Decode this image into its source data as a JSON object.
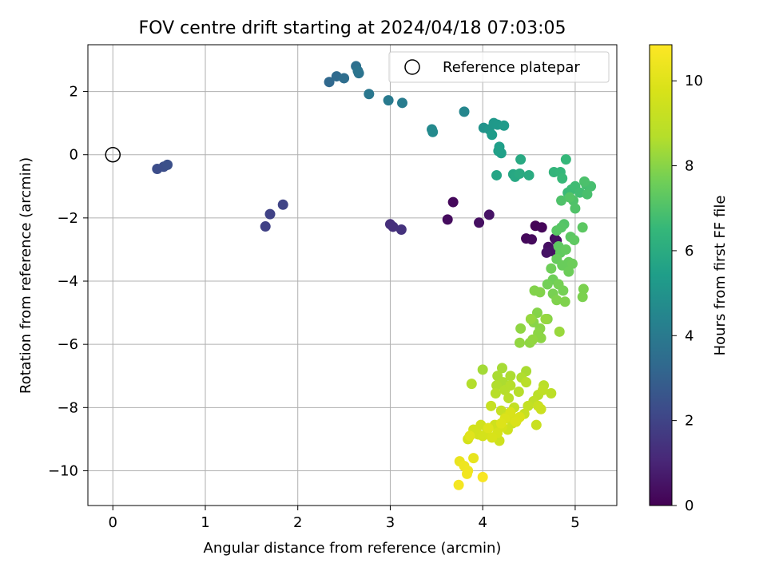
{
  "chart_data": {
    "type": "scatter",
    "title": "FOV centre drift starting at 2024/04/18 07:03:05",
    "xlabel": "Angular distance from reference (arcmin)",
    "ylabel": "Rotation from reference (arcmin)",
    "xlim": [
      -0.27,
      5.45
    ],
    "ylim": [
      -11.1,
      3.48
    ],
    "xticks": [
      0,
      1,
      2,
      3,
      4,
      5
    ],
    "xtick_labels": [
      "0",
      "1",
      "2",
      "3",
      "4",
      "5"
    ],
    "yticks": [
      2,
      0,
      -2,
      -4,
      -6,
      -8,
      -10
    ],
    "ytick_labels": [
      "2",
      "0",
      "−2",
      "−4",
      "−6",
      "−8",
      "−10"
    ],
    "grid": true,
    "legend": {
      "placement": "upper right",
      "entries": [
        {
          "label": "Reference platepar",
          "marker": "open-circle"
        }
      ]
    },
    "reference_point": {
      "x": 0,
      "y": 0
    },
    "colorbar": {
      "label": "Hours from first FF file",
      "colormap": "viridis",
      "range": [
        0,
        10.85
      ],
      "ticks": [
        0,
        2,
        4,
        6,
        8,
        10
      ],
      "tick_labels": [
        "0",
        "2",
        "4",
        "6",
        "8",
        "10"
      ]
    },
    "points": [
      {
        "x": 3.68,
        "y": -1.5,
        "t": 0.2
      },
      {
        "x": 3.62,
        "y": -2.05,
        "t": 0.3
      },
      {
        "x": 3.96,
        "y": -2.15,
        "t": 0.4
      },
      {
        "x": 4.07,
        "y": -1.9,
        "t": 0.5
      },
      {
        "x": 4.57,
        "y": -2.25,
        "t": 0.1
      },
      {
        "x": 4.64,
        "y": -2.3,
        "t": 0.15
      },
      {
        "x": 4.47,
        "y": -2.65,
        "t": 0.2
      },
      {
        "x": 4.53,
        "y": -2.68,
        "t": 0.25
      },
      {
        "x": 4.78,
        "y": -2.65,
        "t": 0.3
      },
      {
        "x": 4.8,
        "y": -2.72,
        "t": 0.35
      },
      {
        "x": 4.71,
        "y": -2.92,
        "t": 0.4
      },
      {
        "x": 4.74,
        "y": -3.05,
        "t": 0.45
      },
      {
        "x": 4.69,
        "y": -3.1,
        "t": 0.5
      },
      {
        "x": 3.0,
        "y": -2.2,
        "t": 1.3
      },
      {
        "x": 3.03,
        "y": -2.28,
        "t": 1.35
      },
      {
        "x": 3.12,
        "y": -2.37,
        "t": 1.4
      },
      {
        "x": 1.65,
        "y": -2.27,
        "t": 1.9
      },
      {
        "x": 1.7,
        "y": -1.88,
        "t": 1.95
      },
      {
        "x": 1.84,
        "y": -1.58,
        "t": 2.0
      },
      {
        "x": 0.48,
        "y": -0.45,
        "t": 2.3
      },
      {
        "x": 0.55,
        "y": -0.38,
        "t": 2.35
      },
      {
        "x": 0.59,
        "y": -0.32,
        "t": 2.4
      },
      {
        "x": 2.34,
        "y": 2.3,
        "t": 3.3
      },
      {
        "x": 2.42,
        "y": 2.48,
        "t": 3.4
      },
      {
        "x": 2.5,
        "y": 2.42,
        "t": 3.5
      },
      {
        "x": 2.63,
        "y": 2.8,
        "t": 3.6
      },
      {
        "x": 2.66,
        "y": 2.58,
        "t": 3.7
      },
      {
        "x": 2.65,
        "y": 2.65,
        "t": 3.75
      },
      {
        "x": 2.77,
        "y": 1.92,
        "t": 3.9
      },
      {
        "x": 2.98,
        "y": 1.72,
        "t": 4.0
      },
      {
        "x": 3.13,
        "y": 1.64,
        "t": 4.1
      },
      {
        "x": 3.45,
        "y": 0.8,
        "t": 4.6
      },
      {
        "x": 3.46,
        "y": 0.72,
        "t": 4.65
      },
      {
        "x": 3.8,
        "y": 1.36,
        "t": 4.5
      },
      {
        "x": 4.01,
        "y": 0.85,
        "t": 5.0
      },
      {
        "x": 4.07,
        "y": 0.8,
        "t": 5.1
      },
      {
        "x": 4.12,
        "y": 1.0,
        "t": 5.2
      },
      {
        "x": 4.16,
        "y": 0.95,
        "t": 5.25
      },
      {
        "x": 4.23,
        "y": 0.92,
        "t": 5.3
      },
      {
        "x": 4.1,
        "y": 0.63,
        "t": 5.35
      },
      {
        "x": 4.18,
        "y": 0.25,
        "t": 5.45
      },
      {
        "x": 4.2,
        "y": 0.05,
        "t": 5.5
      },
      {
        "x": 4.17,
        "y": 0.12,
        "t": 5.5
      },
      {
        "x": 4.15,
        "y": -0.65,
        "t": 5.7
      },
      {
        "x": 4.33,
        "y": -0.62,
        "t": 5.8
      },
      {
        "x": 4.35,
        "y": -0.7,
        "t": 5.85
      },
      {
        "x": 4.41,
        "y": -0.15,
        "t": 5.9
      },
      {
        "x": 4.4,
        "y": -0.6,
        "t": 5.95
      },
      {
        "x": 4.5,
        "y": -0.65,
        "t": 6.0
      },
      {
        "x": 4.77,
        "y": -0.55,
        "t": 6.4
      },
      {
        "x": 4.84,
        "y": -0.55,
        "t": 6.45
      },
      {
        "x": 4.9,
        "y": -0.15,
        "t": 6.5
      },
      {
        "x": 4.86,
        "y": -0.75,
        "t": 6.55
      },
      {
        "x": 4.92,
        "y": -1.2,
        "t": 6.6
      },
      {
        "x": 4.96,
        "y": -1.1,
        "t": 6.65
      },
      {
        "x": 5.0,
        "y": -1.0,
        "t": 6.7
      },
      {
        "x": 5.05,
        "y": -1.2,
        "t": 6.75
      },
      {
        "x": 5.12,
        "y": -0.95,
        "t": 6.8
      },
      {
        "x": 5.17,
        "y": -1.0,
        "t": 6.85
      },
      {
        "x": 5.13,
        "y": -1.25,
        "t": 6.9
      },
      {
        "x": 5.1,
        "y": -0.85,
        "t": 6.95
      },
      {
        "x": 4.98,
        "y": -1.45,
        "t": 7.0
      },
      {
        "x": 4.85,
        "y": -1.45,
        "t": 7.0
      },
      {
        "x": 5.0,
        "y": -1.7,
        "t": 7.05
      },
      {
        "x": 4.94,
        "y": -1.35,
        "t": 7.1
      },
      {
        "x": 4.88,
        "y": -2.2,
        "t": 7.1
      },
      {
        "x": 4.85,
        "y": -2.3,
        "t": 7.15
      },
      {
        "x": 4.8,
        "y": -2.4,
        "t": 7.2
      },
      {
        "x": 4.95,
        "y": -2.6,
        "t": 7.25
      },
      {
        "x": 5.08,
        "y": -2.3,
        "t": 7.25
      },
      {
        "x": 4.99,
        "y": -2.7,
        "t": 7.3
      },
      {
        "x": 4.82,
        "y": -2.9,
        "t": 7.3
      },
      {
        "x": 4.84,
        "y": -3.1,
        "t": 7.35
      },
      {
        "x": 4.9,
        "y": -3.0,
        "t": 7.4
      },
      {
        "x": 4.8,
        "y": -3.3,
        "t": 7.45
      },
      {
        "x": 4.86,
        "y": -3.5,
        "t": 7.5
      },
      {
        "x": 4.93,
        "y": -3.4,
        "t": 7.5
      },
      {
        "x": 4.97,
        "y": -3.45,
        "t": 7.55
      },
      {
        "x": 4.93,
        "y": -3.7,
        "t": 7.55
      },
      {
        "x": 4.74,
        "y": -3.6,
        "t": 7.6
      },
      {
        "x": 4.76,
        "y": -3.95,
        "t": 7.6
      },
      {
        "x": 4.7,
        "y": -4.1,
        "t": 7.65
      },
      {
        "x": 4.82,
        "y": -4.1,
        "t": 7.7
      },
      {
        "x": 4.87,
        "y": -4.3,
        "t": 7.7
      },
      {
        "x": 4.76,
        "y": -4.4,
        "t": 7.75
      },
      {
        "x": 5.09,
        "y": -4.25,
        "t": 7.8
      },
      {
        "x": 5.08,
        "y": -4.5,
        "t": 7.8
      },
      {
        "x": 4.89,
        "y": -4.65,
        "t": 7.85
      },
      {
        "x": 4.8,
        "y": -4.6,
        "t": 7.85
      },
      {
        "x": 4.56,
        "y": -4.3,
        "t": 7.9
      },
      {
        "x": 4.62,
        "y": -4.35,
        "t": 7.9
      },
      {
        "x": 4.7,
        "y": -5.2,
        "t": 7.95
      },
      {
        "x": 4.59,
        "y": -5.0,
        "t": 7.95
      },
      {
        "x": 4.55,
        "y": -5.3,
        "t": 8.0
      },
      {
        "x": 4.62,
        "y": -5.5,
        "t": 8.0
      },
      {
        "x": 4.63,
        "y": -5.8,
        "t": 8.05
      },
      {
        "x": 4.6,
        "y": -5.65,
        "t": 8.05
      },
      {
        "x": 4.41,
        "y": -5.5,
        "t": 8.1
      },
      {
        "x": 4.51,
        "y": -5.95,
        "t": 8.1
      },
      {
        "x": 4.4,
        "y": -5.95,
        "t": 8.15
      },
      {
        "x": 4.54,
        "y": -5.85,
        "t": 8.15
      },
      {
        "x": 4.68,
        "y": -5.2,
        "t": 8.2
      },
      {
        "x": 4.52,
        "y": -5.2,
        "t": 8.2
      },
      {
        "x": 4.83,
        "y": -5.6,
        "t": 8.25
      },
      {
        "x": 4.0,
        "y": -6.8,
        "t": 8.4
      },
      {
        "x": 4.21,
        "y": -6.75,
        "t": 8.45
      },
      {
        "x": 4.47,
        "y": -6.85,
        "t": 8.5
      },
      {
        "x": 4.16,
        "y": -7.0,
        "t": 8.5
      },
      {
        "x": 4.22,
        "y": -7.2,
        "t": 8.55
      },
      {
        "x": 4.3,
        "y": -7.0,
        "t": 8.55
      },
      {
        "x": 4.42,
        "y": -7.05,
        "t": 8.6
      },
      {
        "x": 4.15,
        "y": -7.3,
        "t": 8.6
      },
      {
        "x": 3.88,
        "y": -7.25,
        "t": 8.65
      },
      {
        "x": 4.24,
        "y": -7.45,
        "t": 8.7
      },
      {
        "x": 4.3,
        "y": -7.3,
        "t": 8.7
      },
      {
        "x": 4.39,
        "y": -7.5,
        "t": 8.75
      },
      {
        "x": 4.14,
        "y": -7.55,
        "t": 8.75
      },
      {
        "x": 4.28,
        "y": -7.7,
        "t": 8.8
      },
      {
        "x": 4.47,
        "y": -7.2,
        "t": 8.8
      },
      {
        "x": 4.66,
        "y": -7.3,
        "t": 8.85
      },
      {
        "x": 4.6,
        "y": -7.6,
        "t": 8.85
      },
      {
        "x": 4.74,
        "y": -7.55,
        "t": 8.9
      },
      {
        "x": 4.65,
        "y": -7.45,
        "t": 9.0
      },
      {
        "x": 4.55,
        "y": -7.8,
        "t": 9.0
      },
      {
        "x": 4.49,
        "y": -7.95,
        "t": 9.1
      },
      {
        "x": 4.34,
        "y": -8.0,
        "t": 9.1
      },
      {
        "x": 4.09,
        "y": -7.95,
        "t": 9.2
      },
      {
        "x": 4.2,
        "y": -8.1,
        "t": 9.2
      },
      {
        "x": 4.45,
        "y": -8.2,
        "t": 9.25
      },
      {
        "x": 4.6,
        "y": -7.95,
        "t": 9.3
      },
      {
        "x": 4.58,
        "y": -8.55,
        "t": 9.3
      },
      {
        "x": 4.63,
        "y": -8.05,
        "t": 9.35
      },
      {
        "x": 4.38,
        "y": -8.35,
        "t": 9.4
      },
      {
        "x": 4.32,
        "y": -8.5,
        "t": 9.4
      },
      {
        "x": 4.25,
        "y": -8.3,
        "t": 9.45
      },
      {
        "x": 4.18,
        "y": -9.05,
        "t": 9.45
      },
      {
        "x": 4.27,
        "y": -8.7,
        "t": 9.5
      },
      {
        "x": 4.13,
        "y": -8.55,
        "t": 9.5
      },
      {
        "x": 4.05,
        "y": -8.7,
        "t": 9.55
      },
      {
        "x": 3.98,
        "y": -8.55,
        "t": 9.55
      },
      {
        "x": 3.95,
        "y": -8.85,
        "t": 9.6
      },
      {
        "x": 3.9,
        "y": -8.7,
        "t": 9.6
      },
      {
        "x": 3.84,
        "y": -9.0,
        "t": 9.65
      },
      {
        "x": 4.0,
        "y": -8.9,
        "t": 9.65
      },
      {
        "x": 4.16,
        "y": -8.8,
        "t": 9.7
      },
      {
        "x": 4.21,
        "y": -8.6,
        "t": 9.7
      },
      {
        "x": 4.1,
        "y": -8.95,
        "t": 9.75
      },
      {
        "x": 4.34,
        "y": -8.4,
        "t": 9.75
      },
      {
        "x": 4.4,
        "y": -8.3,
        "t": 9.8
      },
      {
        "x": 4.3,
        "y": -8.15,
        "t": 9.8
      },
      {
        "x": 4.36,
        "y": -8.45,
        "t": 9.85
      },
      {
        "x": 4.24,
        "y": -8.35,
        "t": 9.85
      },
      {
        "x": 4.2,
        "y": -8.5,
        "t": 9.9
      },
      {
        "x": 4.06,
        "y": -8.65,
        "t": 9.95
      },
      {
        "x": 3.86,
        "y": -8.9,
        "t": 10.0
      },
      {
        "x": 3.9,
        "y": -9.6,
        "t": 10.2
      },
      {
        "x": 3.75,
        "y": -9.7,
        "t": 10.3
      },
      {
        "x": 3.8,
        "y": -9.85,
        "t": 10.4
      },
      {
        "x": 3.84,
        "y": -10.0,
        "t": 10.45
      },
      {
        "x": 3.83,
        "y": -10.1,
        "t": 10.5
      },
      {
        "x": 3.74,
        "y": -10.45,
        "t": 10.6
      },
      {
        "x": 4.0,
        "y": -10.2,
        "t": 10.7
      }
    ]
  }
}
